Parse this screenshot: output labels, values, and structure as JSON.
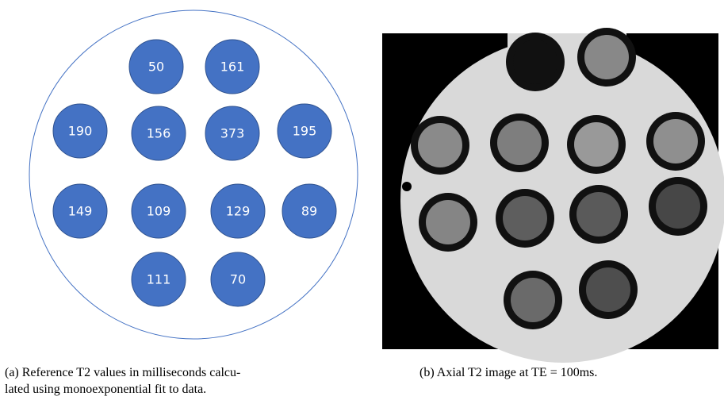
{
  "figure_a": {
    "nodes": [
      {
        "label": 50
      },
      {
        "label": 161
      },
      {
        "label": 190
      },
      {
        "label": 156
      },
      {
        "label": 373
      },
      {
        "label": 195
      },
      {
        "label": 149
      },
      {
        "label": 109
      },
      {
        "label": 129
      },
      {
        "label": 89
      },
      {
        "label": 111
      },
      {
        "label": 70
      }
    ],
    "caption": [
      "(a) Reference T2 values in milliseconds calcu-",
      "lated using monoexponential fit to data."
    ]
  },
  "figure_b": {
    "caption": [
      "(b) Axial T2 image at TE = 100ms."
    ]
  }
}
